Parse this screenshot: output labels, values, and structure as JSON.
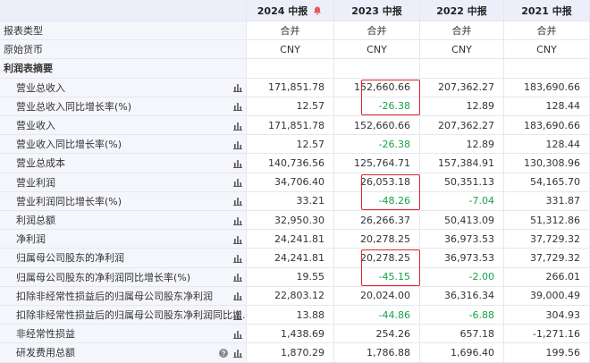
{
  "table": {
    "columns": [
      "2024 中报",
      "2023 中报",
      "2022 中报",
      "2021 中报"
    ],
    "rows": [
      {
        "label": "报表类型",
        "values": [
          "合并",
          "合并",
          "合并",
          "合并"
        ]
      },
      {
        "label": "原始货币",
        "values": [
          "CNY",
          "CNY",
          "CNY",
          "CNY"
        ]
      },
      {
        "label": "利润表摘要"
      },
      {
        "label": "营业总收入",
        "values": [
          "171,851.78",
          "152,660.66",
          "207,362.27",
          "183,690.66"
        ]
      },
      {
        "label": "营业总收入同比增长率(%)",
        "values": [
          "12.57",
          "-26.38",
          "12.89",
          "128.44"
        ]
      },
      {
        "label": "营业收入",
        "values": [
          "171,851.78",
          "152,660.66",
          "207,362.27",
          "183,690.66"
        ]
      },
      {
        "label": "营业收入同比增长率(%)",
        "values": [
          "12.57",
          "-26.38",
          "12.89",
          "128.44"
        ]
      },
      {
        "label": "营业总成本",
        "values": [
          "140,736.56",
          "125,764.71",
          "157,384.91",
          "130,308.96"
        ]
      },
      {
        "label": "营业利润",
        "values": [
          "34,706.40",
          "26,053.18",
          "50,351.13",
          "54,165.70"
        ]
      },
      {
        "label": "营业利润同比增长率(%)",
        "values": [
          "33.21",
          "-48.26",
          "-7.04",
          "331.87"
        ]
      },
      {
        "label": "利润总额",
        "values": [
          "32,950.30",
          "26,266.37",
          "50,413.09",
          "51,312.86"
        ]
      },
      {
        "label": "净利润",
        "values": [
          "24,241.81",
          "20,278.25",
          "36,973.53",
          "37,729.32"
        ]
      },
      {
        "label": "归属母公司股东的净利润",
        "values": [
          "24,241.81",
          "20,278.25",
          "36,973.53",
          "37,729.32"
        ]
      },
      {
        "label": "归属母公司股东的净利润同比增长率(%)",
        "values": [
          "19.55",
          "-45.15",
          "-2.00",
          "266.01"
        ]
      },
      {
        "label": "扣除非经常性损益后的归属母公司股东净利润",
        "values": [
          "22,803.12",
          "20,024.00",
          "36,316.34",
          "39,000.49"
        ]
      },
      {
        "label": "扣除非经常性损益后的归属母公司股东净利润同比增...",
        "values": [
          "13.88",
          "-44.86",
          "-6.88",
          "304.93"
        ]
      },
      {
        "label": "非经常性损益",
        "values": [
          "1,438.69",
          "254.26",
          "657.18",
          "-1,271.16"
        ]
      },
      {
        "label": "研发费用总额",
        "values": [
          "1,870.29",
          "1,786.88",
          "1,696.40",
          "199.56"
        ]
      }
    ]
  }
}
